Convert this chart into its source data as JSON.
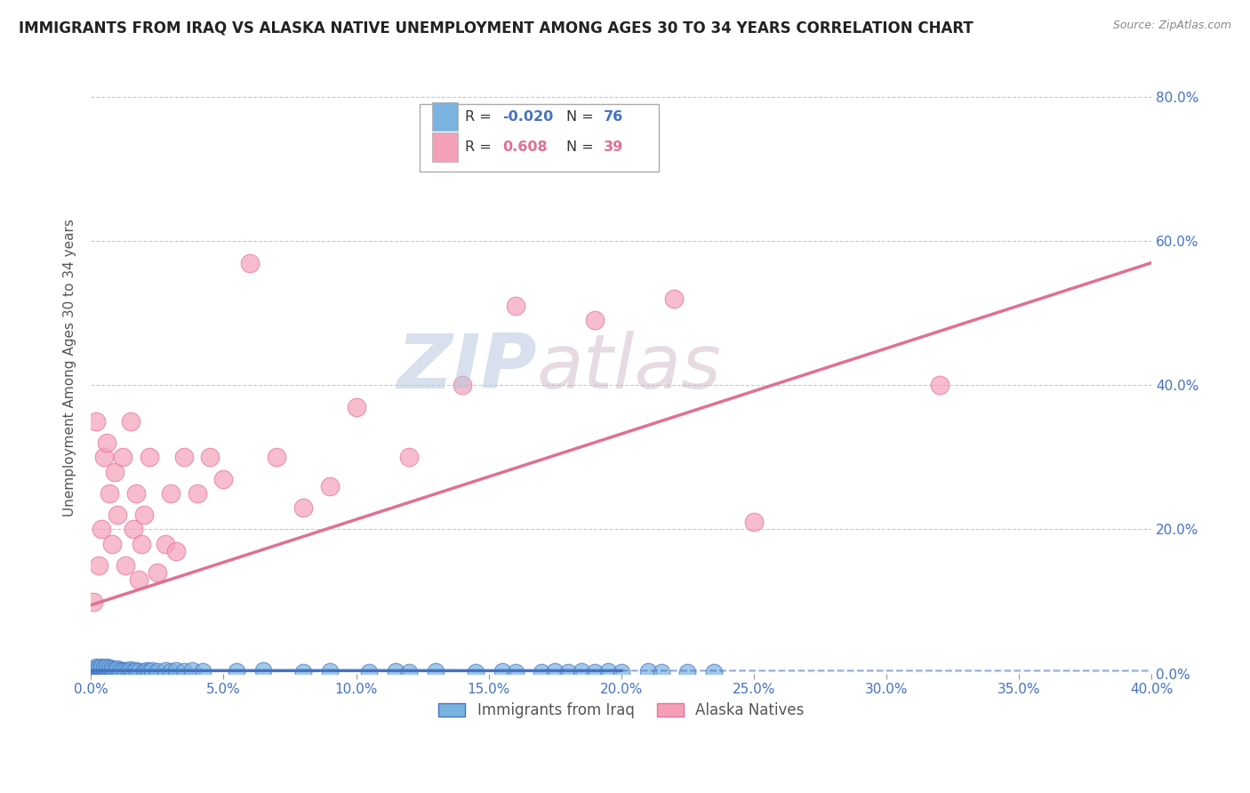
{
  "title": "IMMIGRANTS FROM IRAQ VS ALASKA NATIVE UNEMPLOYMENT AMONG AGES 30 TO 34 YEARS CORRELATION CHART",
  "source": "Source: ZipAtlas.com",
  "ylabel": "Unemployment Among Ages 30 to 34 years",
  "xlim": [
    0.0,
    0.4
  ],
  "ylim": [
    0.0,
    0.85
  ],
  "yticks": [
    0.0,
    0.2,
    0.4,
    0.6,
    0.8
  ],
  "ytick_labels": [
    "0.0%",
    "20.0%",
    "40.0%",
    "60.0%",
    "80.0%"
  ],
  "xticks": [
    0.0,
    0.05,
    0.1,
    0.15,
    0.2,
    0.25,
    0.3,
    0.35,
    0.4
  ],
  "xtick_labels": [
    "0.0%",
    "5.0%",
    "10.0%",
    "15.0%",
    "20.0%",
    "25.0%",
    "30.0%",
    "35.0%",
    "40.0%"
  ],
  "series1_label": "Immigrants from Iraq",
  "series1_color": "#7ab3e0",
  "series1_edge_color": "#4472c4",
  "series1_R": -0.02,
  "series1_N": 76,
  "series2_label": "Alaska Natives",
  "series2_color": "#f4a0b8",
  "series2_edge_color": "#e87099",
  "series2_R": 0.608,
  "series2_N": 39,
  "watermark_zip": "ZIP",
  "watermark_atlas": "atlas",
  "background_color": "#ffffff",
  "grid_color": "#c8c8c8",
  "axis_color": "#4472c4",
  "title_fontsize": 12,
  "label_fontsize": 11,
  "tick_fontsize": 11,
  "legend_R_color1": "#4472c4",
  "legend_R_color2": "#e07090",
  "trend1_color": "#4472c4",
  "trend2_color": "#e07090",
  "scatter1_x": [
    0.001,
    0.001,
    0.001,
    0.002,
    0.002,
    0.002,
    0.002,
    0.003,
    0.003,
    0.003,
    0.003,
    0.004,
    0.004,
    0.004,
    0.004,
    0.004,
    0.005,
    0.005,
    0.005,
    0.005,
    0.006,
    0.006,
    0.006,
    0.006,
    0.007,
    0.007,
    0.007,
    0.008,
    0.008,
    0.008,
    0.009,
    0.009,
    0.01,
    0.01,
    0.011,
    0.012,
    0.013,
    0.014,
    0.015,
    0.015,
    0.016,
    0.017,
    0.018,
    0.02,
    0.021,
    0.022,
    0.023,
    0.025,
    0.028,
    0.03,
    0.032,
    0.035,
    0.038,
    0.042,
    0.055,
    0.065,
    0.08,
    0.09,
    0.105,
    0.115,
    0.12,
    0.13,
    0.145,
    0.155,
    0.16,
    0.17,
    0.175,
    0.18,
    0.185,
    0.19,
    0.195,
    0.2,
    0.21,
    0.215,
    0.225,
    0.235
  ],
  "scatter1_y": [
    0.003,
    0.005,
    0.007,
    0.003,
    0.004,
    0.006,
    0.01,
    0.003,
    0.004,
    0.006,
    0.008,
    0.002,
    0.003,
    0.005,
    0.007,
    0.01,
    0.002,
    0.004,
    0.006,
    0.008,
    0.002,
    0.004,
    0.006,
    0.009,
    0.003,
    0.005,
    0.008,
    0.003,
    0.005,
    0.007,
    0.003,
    0.006,
    0.004,
    0.007,
    0.004,
    0.005,
    0.004,
    0.005,
    0.003,
    0.006,
    0.003,
    0.004,
    0.003,
    0.003,
    0.004,
    0.003,
    0.004,
    0.003,
    0.004,
    0.003,
    0.005,
    0.003,
    0.004,
    0.003,
    0.003,
    0.004,
    0.002,
    0.003,
    0.002,
    0.003,
    0.002,
    0.003,
    0.002,
    0.003,
    0.002,
    0.002,
    0.003,
    0.002,
    0.003,
    0.002,
    0.003,
    0.002,
    0.003,
    0.002,
    0.002,
    0.002
  ],
  "scatter2_x": [
    0.001,
    0.002,
    0.003,
    0.004,
    0.005,
    0.006,
    0.007,
    0.008,
    0.009,
    0.01,
    0.012,
    0.013,
    0.015,
    0.016,
    0.017,
    0.018,
    0.019,
    0.02,
    0.022,
    0.025,
    0.028,
    0.03,
    0.032,
    0.035,
    0.04,
    0.045,
    0.05,
    0.06,
    0.07,
    0.08,
    0.09,
    0.1,
    0.12,
    0.14,
    0.16,
    0.19,
    0.22,
    0.25,
    0.32
  ],
  "scatter2_y": [
    0.1,
    0.35,
    0.15,
    0.2,
    0.3,
    0.32,
    0.25,
    0.18,
    0.28,
    0.22,
    0.3,
    0.15,
    0.35,
    0.2,
    0.25,
    0.13,
    0.18,
    0.22,
    0.3,
    0.14,
    0.18,
    0.25,
    0.17,
    0.3,
    0.25,
    0.3,
    0.27,
    0.57,
    0.3,
    0.23,
    0.26,
    0.37,
    0.3,
    0.4,
    0.51,
    0.49,
    0.52,
    0.21,
    0.4
  ],
  "trend2_x0": 0.0,
  "trend2_y0": 0.095,
  "trend2_x1": 0.4,
  "trend2_y1": 0.57
}
